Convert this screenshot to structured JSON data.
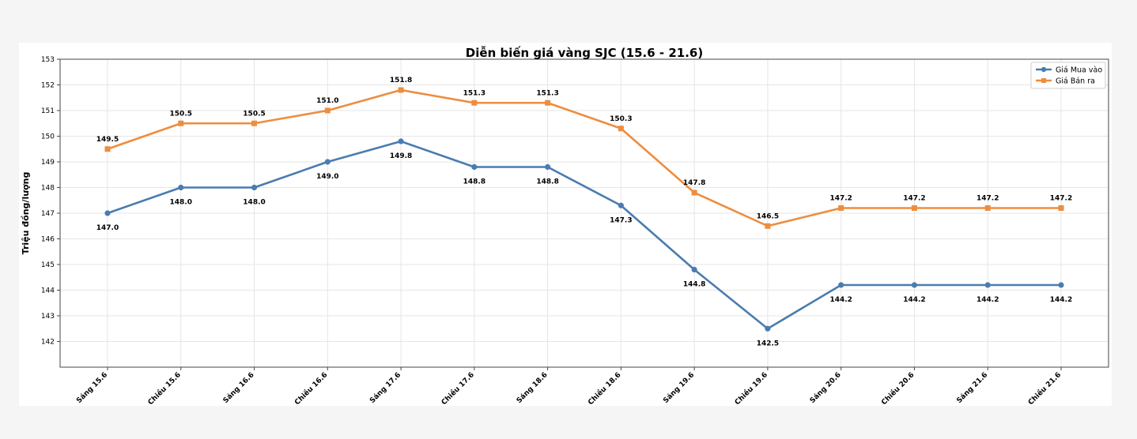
{
  "chart_data": {
    "type": "line",
    "title": "Diễn biến giá vàng SJC (15.6 - 21.6)",
    "xlabel": "",
    "ylabel": "Triệu đồng/lượng",
    "categories": [
      "Sáng 15.6",
      "Chiều 15.6",
      "Sáng 16.6",
      "Chiều 16.6",
      "Sáng 17.6",
      "Chiều 17.6",
      "Sáng 18.6",
      "Chiều 18.6",
      "Sáng 19.6",
      "Chiều 19.6",
      "Sáng 20.6",
      "Chiều 20.6",
      "Sáng 21.6",
      "Chiều 21.6"
    ],
    "series": [
      {
        "name": "Giá Mua vào",
        "color": "#4a7cb0",
        "marker": "circle",
        "values": [
          147.0,
          148.0,
          148.0,
          149.0,
          149.8,
          148.8,
          148.8,
          147.3,
          144.8,
          142.5,
          144.2,
          144.2,
          144.2,
          144.2
        ],
        "labels": [
          "147.0",
          "148.0",
          "148.0",
          "149.0",
          "149.8",
          "148.8",
          "148.8",
          "147.3",
          "144.8",
          "142.5",
          "144.2",
          "144.2",
          "144.2",
          "144.2"
        ],
        "label_position": "below"
      },
      {
        "name": "Giá Bán ra",
        "color": "#ed8d3f",
        "marker": "square",
        "values": [
          149.5,
          150.5,
          150.5,
          151.0,
          151.8,
          151.3,
          151.3,
          150.3,
          147.8,
          146.5,
          147.2,
          147.2,
          147.2,
          147.2
        ],
        "labels": [
          "149.5",
          "150.5",
          "150.5",
          "151.0",
          "151.8",
          "151.3",
          "151.3",
          "150.3",
          "147.8",
          "146.5",
          "147.2",
          "147.2",
          "147.2",
          "147.2"
        ],
        "label_position": "above"
      }
    ],
    "ylim": [
      141,
      153
    ],
    "yticks": [
      "142",
      "143",
      "144",
      "145",
      "146",
      "147",
      "148",
      "149",
      "150",
      "151",
      "152",
      "153"
    ],
    "grid": true,
    "legend_position": "top-right"
  }
}
